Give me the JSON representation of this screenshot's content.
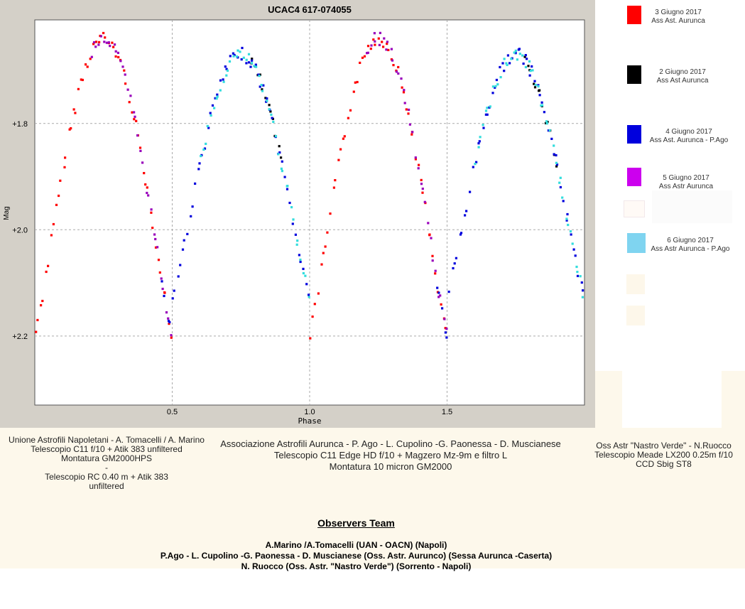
{
  "chart_data": {
    "type": "scatter",
    "title": "UCAC4 617-074055",
    "xlabel": "Phase",
    "ylabel": "Mag",
    "xlim": [
      0,
      2
    ],
    "ylim": [
      2.33,
      1.605
    ],
    "y_inverted": true,
    "x_ticks": [
      0.5,
      1.0,
      1.5
    ],
    "x_tick_labels": [
      "0.5",
      "1.0",
      "1.5"
    ],
    "y_ticks": [
      1.8,
      2.0,
      2.2
    ],
    "y_tick_labels": [
      "+1.8",
      "+2.0",
      "+2.2"
    ],
    "grid": true,
    "legend_position": "right",
    "light_curve": {
      "period_phase": 0.5,
      "max_phase": 0.26,
      "min_phase": 0.0,
      "primary_min_mag": 2.2,
      "secondary_min_mag": 2.13,
      "primary_max_mag": 1.64,
      "secondary_max_mag": 1.67
    },
    "series": [
      {
        "name": "3 Giugno 2017 Ass Ast. Aurunca",
        "color": "#ff0000",
        "phase_range": [
          0.0,
          0.5
        ]
      },
      {
        "name": "2 Giugno 2017 Ass Ast Aurunca",
        "color": "#000000",
        "phase_range": [
          0.78,
          0.9
        ]
      },
      {
        "name": "4 Giugno 2017 Ass Ast. Aurunca - P.Ago",
        "color": "#0000dd",
        "phase_range": [
          0.46,
          1.0
        ]
      },
      {
        "name": "5 Giugno 2017 Ass Astr Aurunca",
        "color": "#9900bb",
        "phase_range": [
          0.2,
          0.5
        ]
      },
      {
        "name": "6 Giugno 2017 Ass Astr Aurunca - P.Ago",
        "color": "#33dddd",
        "phase_range": [
          0.6,
          1.0
        ]
      }
    ]
  },
  "legend": [
    {
      "color": "#ff0000",
      "line1": "3 Giugno 2017",
      "line2": "Ass Ast. Aurunca"
    },
    {
      "color": "#000000",
      "line1": "2 Giugno 2017",
      "line2": "Ass Ast Aurunca"
    },
    {
      "color": "#0000dd",
      "line1": "4 Giugno 2017",
      "line2": "Ass Ast. Aurunca - P.Ago"
    },
    {
      "color": "#cc00ee",
      "line1": "5 Giugno 2017",
      "line2": "Ass Astr Aurunca"
    },
    {
      "color": "#7fd4f0",
      "line1": "6 Giugno 2017",
      "line2": "Ass Astr Aurunca - P.Ago"
    }
  ],
  "observers": {
    "left": {
      "line1": "Unione Astrofili Napoletani - A. Tomacelli / A. Marino",
      "line2": "Telescopio C11 f/10 + Atik 383 unfiltered",
      "line3": "Montatura GM2000HPS",
      "line4": "-",
      "line5": "Telescopio RC 0.40 m + Atik 383",
      "line6": "unfiltered"
    },
    "center": {
      "line1": "Associazione Astrofili Aurunca - P. Ago - L. Cupolino -G. Paonessa - D. Muscianese",
      "line2": "Telescopio C11 Edge HD f/10 + Magzero Mz-9m e filtro L",
      "line3": "Montatura 10 micron GM2000"
    },
    "right": {
      "line1": "Oss Astr \"Nastro Verde\" - N.Ruocco",
      "line2": "Telescopio Meade LX200 0.25m f/10",
      "line3": "CCD Sbig ST8"
    }
  },
  "team": {
    "title": "Observers Team",
    "line1": "A.Marino /A.Tomacelli (UAN - OACN) (Napoli)",
    "line2": "P.Ago - L. Cupolino -G. Paonessa - D. Muscianese (Oss. Astr. Aurunco) (Sessa Aurunca -Caserta)",
    "line3": "N. Ruocco (Oss. Astr. \"Nastro Verde\") (Sorrento - Napoli)"
  }
}
